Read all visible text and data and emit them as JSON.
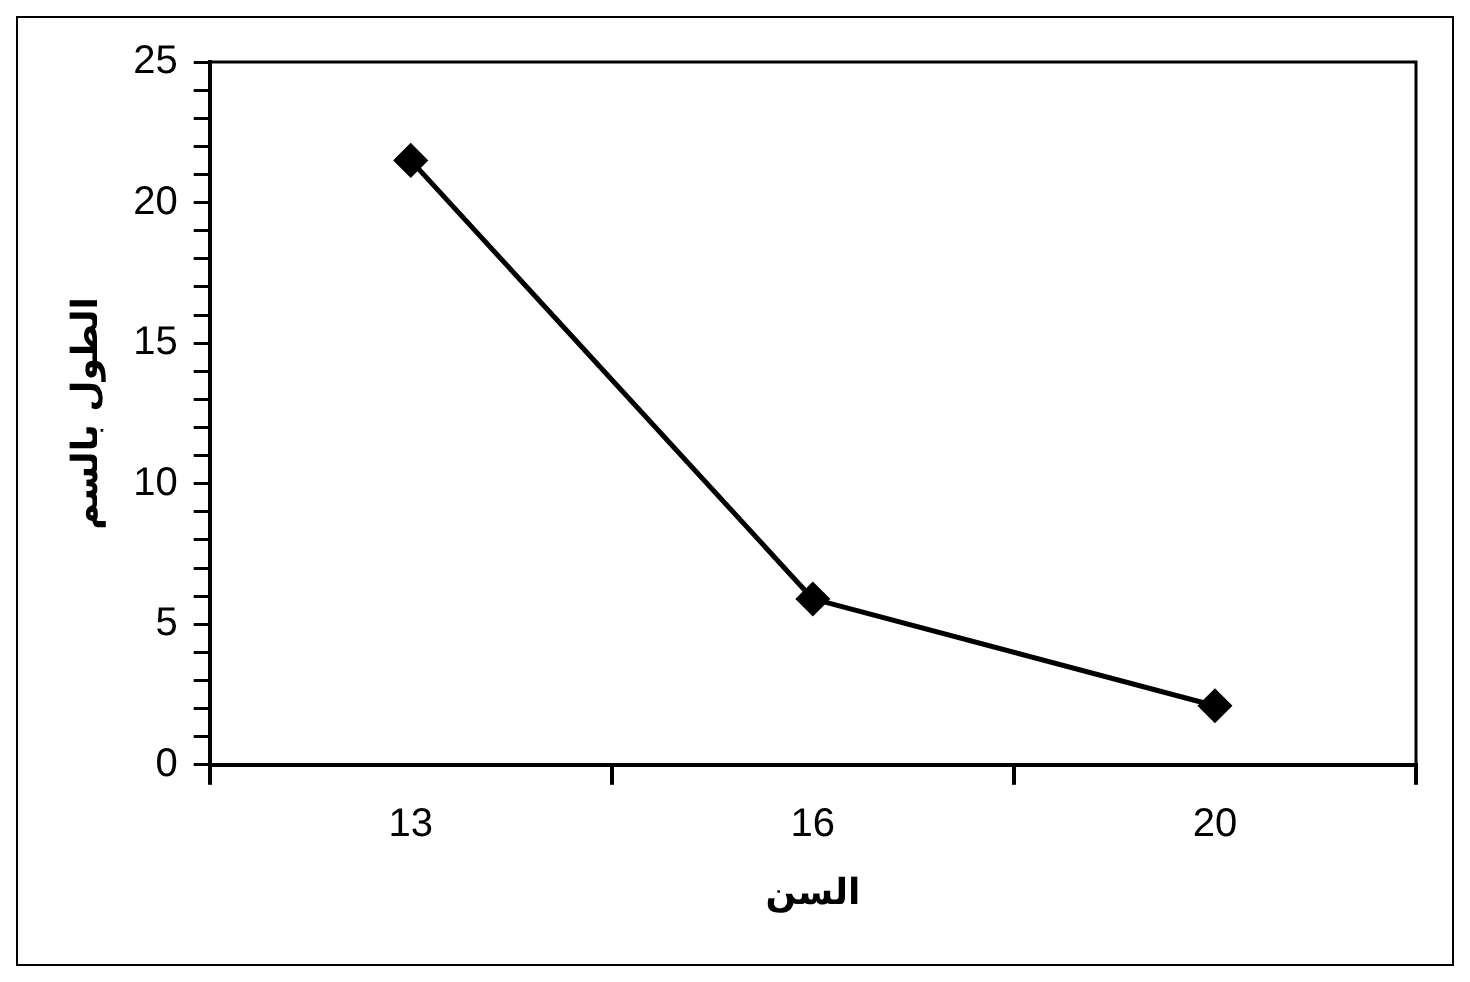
{
  "chart_data": {
    "type": "line",
    "xlabel": "السن",
    "ylabel": "الطول بالسم",
    "categories": [
      "13",
      "16",
      "20"
    ],
    "series": [
      {
        "color": "#000000",
        "values": [
          21.5,
          5.9,
          2.1
        ]
      }
    ],
    "ylim": [
      0,
      25
    ],
    "yticks": [
      0,
      {
        "value": 1,
        "label": null
      },
      {
        "value": 2,
        "label": null
      },
      {
        "value": 3,
        "label": null
      },
      {
        "value": 4,
        "label": null
      },
      5,
      {
        "value": 6,
        "label": null
      },
      {
        "value": 7,
        "label": null
      },
      {
        "value": 8,
        "label": null
      },
      {
        "value": 9,
        "label": null
      },
      10,
      {
        "value": 11,
        "label": null
      },
      {
        "value": 12,
        "label": null
      },
      {
        "value": 13,
        "label": null
      },
      {
        "value": 14,
        "label": null
      },
      15,
      {
        "value": 16,
        "label": null
      },
      {
        "value": 17,
        "label": null
      },
      {
        "value": 18,
        "label": null
      },
      {
        "value": 19,
        "label": null
      },
      20,
      {
        "value": 21,
        "label": null
      },
      {
        "value": 22,
        "label": null
      },
      {
        "value": 23,
        "label": null
      },
      {
        "value": 24,
        "label": null
      },
      25
    ],
    "grid": false,
    "legend": false,
    "marker": "diamond",
    "line_style": "solid"
  }
}
